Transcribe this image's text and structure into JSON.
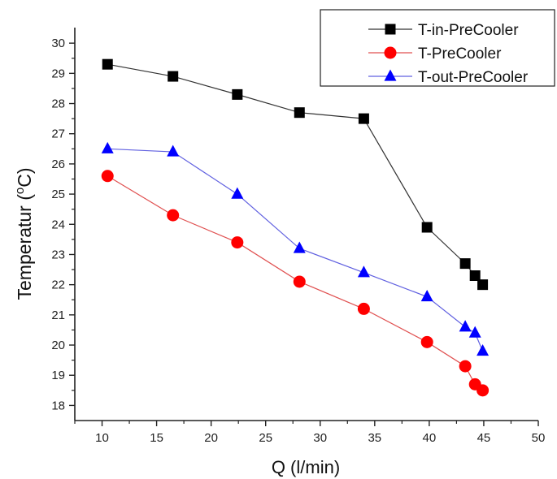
{
  "chart_data": {
    "type": "line",
    "title": "",
    "xlabel": "Q (l/min)",
    "ylabel_prefix": "Temperatur (",
    "ylabel_sup": "o",
    "ylabel_suffix": "C)",
    "xlim": [
      7.5,
      50
    ],
    "ylim": [
      17.5,
      30.3
    ],
    "xticks": [
      10,
      15,
      20,
      25,
      30,
      35,
      40,
      45,
      50
    ],
    "yticks": [
      18,
      19,
      20,
      21,
      22,
      23,
      24,
      25,
      26,
      27,
      28,
      29,
      30
    ],
    "legend_position": "top-right",
    "series": [
      {
        "name": "T-in-PreCooler",
        "color": "#000000",
        "line_color": "#333333",
        "marker": "square",
        "x": [
          10.5,
          16.5,
          22.4,
          28.1,
          34.0,
          39.8,
          43.3,
          44.2,
          44.9
        ],
        "y": [
          29.3,
          28.9,
          28.3,
          27.7,
          27.5,
          23.9,
          22.7,
          22.3,
          22.0
        ]
      },
      {
        "name": "T-PreCooler",
        "color": "#ff0000",
        "line_color": "#e05050",
        "marker": "circle",
        "x": [
          10.5,
          16.5,
          22.4,
          28.1,
          34.0,
          39.8,
          43.3,
          44.2,
          44.9
        ],
        "y": [
          25.6,
          24.3,
          23.4,
          22.1,
          21.2,
          20.1,
          19.3,
          18.7,
          18.5
        ]
      },
      {
        "name": "T-out-PreCooler",
        "color": "#0000ff",
        "line_color": "#6060e0",
        "marker": "triangle",
        "x": [
          10.5,
          16.5,
          22.4,
          28.1,
          34.0,
          39.8,
          43.3,
          44.2,
          44.9
        ],
        "y": [
          26.5,
          26.4,
          25.0,
          23.2,
          22.4,
          21.6,
          20.6,
          20.4,
          19.8
        ]
      }
    ]
  }
}
